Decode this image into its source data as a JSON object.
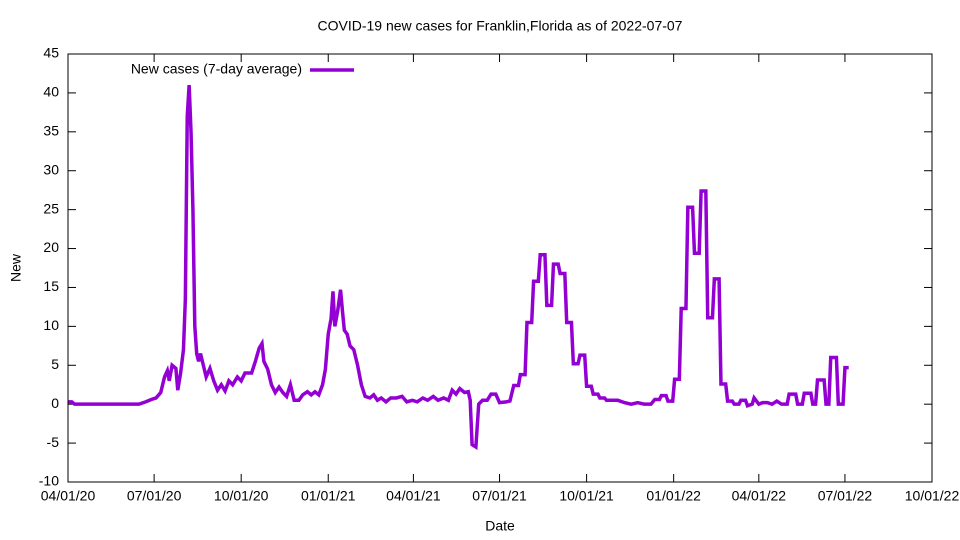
{
  "chart_data": {
    "type": "line",
    "title": "COVID-19 new cases for Franklin,Florida as of 2022-07-07",
    "x_label": "Date",
    "y_label": "New",
    "legend": "top-left",
    "grid": false,
    "xlim": [
      "2020-04-01",
      "2022-10-01"
    ],
    "xticks": [
      {
        "value": "2020-04-01",
        "label": "04/01/20"
      },
      {
        "value": "2020-07-01",
        "label": "07/01/20"
      },
      {
        "value": "2020-10-01",
        "label": "10/01/20"
      },
      {
        "value": "2021-01-01",
        "label": "01/01/21"
      },
      {
        "value": "2021-04-01",
        "label": "04/01/21"
      },
      {
        "value": "2021-07-01",
        "label": "07/01/21"
      },
      {
        "value": "2021-10-01",
        "label": "10/01/21"
      },
      {
        "value": "2022-01-01",
        "label": "01/01/22"
      },
      {
        "value": "2022-04-01",
        "label": "04/01/22"
      },
      {
        "value": "2022-07-01",
        "label": "07/01/22"
      },
      {
        "value": "2022-10-01",
        "label": "10/01/22"
      }
    ],
    "ylim": [
      -10,
      45
    ],
    "yticks": [
      -10,
      -5,
      0,
      5,
      10,
      15,
      20,
      25,
      30,
      35,
      40,
      45
    ],
    "x": [
      "2020-04-01",
      "2020-04-05",
      "2020-04-08",
      "2020-06-15",
      "2020-06-22",
      "2020-06-28",
      "2020-07-03",
      "2020-07-08",
      "2020-07-12",
      "2020-07-15",
      "2020-07-17",
      "2020-07-20",
      "2020-07-24",
      "2020-07-26",
      "2020-07-29",
      "2020-08-01",
      "2020-08-03",
      "2020-08-05",
      "2020-08-07",
      "2020-08-09",
      "2020-08-11",
      "2020-08-13",
      "2020-08-15",
      "2020-08-17",
      "2020-08-19",
      "2020-08-22",
      "2020-08-25",
      "2020-08-29",
      "2020-09-02",
      "2020-09-06",
      "2020-09-10",
      "2020-09-14",
      "2020-09-18",
      "2020-09-22",
      "2020-09-27",
      "2020-10-01",
      "2020-10-05",
      "2020-10-12",
      "2020-10-16",
      "2020-10-20",
      "2020-10-23",
      "2020-10-25",
      "2020-10-29",
      "2020-11-02",
      "2020-11-06",
      "2020-11-10",
      "2020-11-14",
      "2020-11-18",
      "2020-11-22",
      "2020-11-26",
      "2020-12-01",
      "2020-12-05",
      "2020-12-10",
      "2020-12-14",
      "2020-12-18",
      "2020-12-22",
      "2020-12-26",
      "2020-12-29",
      "2021-01-01",
      "2021-01-04",
      "2021-01-06",
      "2021-01-08",
      "2021-01-11",
      "2021-01-14",
      "2021-01-16",
      "2021-01-18",
      "2021-01-21",
      "2021-01-24",
      "2021-01-28",
      "2021-02-01",
      "2021-02-05",
      "2021-02-09",
      "2021-02-14",
      "2021-02-18",
      "2021-02-22",
      "2021-02-26",
      "2021-03-03",
      "2021-03-08",
      "2021-03-14",
      "2021-03-20",
      "2021-03-25",
      "2021-03-31",
      "2021-04-05",
      "2021-04-11",
      "2021-04-16",
      "2021-04-22",
      "2021-04-27",
      "2021-05-03",
      "2021-05-08",
      "2021-05-12",
      "2021-05-16",
      "2021-05-20",
      "2021-05-25",
      "2021-05-29",
      "2021-05-31",
      "2021-06-02",
      "2021-06-06",
      "2021-06-09",
      "2021-06-13",
      "2021-06-18",
      "2021-06-22",
      "2021-06-27",
      "2021-07-01",
      "2021-07-08",
      "2021-07-12",
      "2021-07-16",
      "2021-07-21",
      "2021-07-23",
      "2021-07-28",
      "2021-07-30",
      "2021-08-04",
      "2021-08-06",
      "2021-08-11",
      "2021-08-13",
      "2021-08-18",
      "2021-08-20",
      "2021-08-25",
      "2021-08-27",
      "2021-09-01",
      "2021-09-03",
      "2021-09-08",
      "2021-09-10",
      "2021-09-15",
      "2021-09-17",
      "2021-09-22",
      "2021-09-24",
      "2021-09-29",
      "2021-10-01",
      "2021-10-06",
      "2021-10-08",
      "2021-10-13",
      "2021-10-15",
      "2021-10-20",
      "2021-10-22",
      "2021-11-03",
      "2021-11-10",
      "2021-11-17",
      "2021-11-24",
      "2021-12-01",
      "2021-12-08",
      "2021-12-12",
      "2021-12-17",
      "2021-12-19",
      "2021-12-24",
      "2021-12-26",
      "2021-12-31",
      "2022-01-02",
      "2022-01-07",
      "2022-01-09",
      "2022-01-14",
      "2022-01-16",
      "2022-01-21",
      "2022-01-23",
      "2022-01-28",
      "2022-01-30",
      "2022-02-04",
      "2022-02-06",
      "2022-02-11",
      "2022-02-13",
      "2022-02-18",
      "2022-02-20",
      "2022-02-25",
      "2022-02-27",
      "2022-03-04",
      "2022-03-06",
      "2022-03-11",
      "2022-03-13",
      "2022-03-18",
      "2022-03-20",
      "2022-03-25",
      "2022-03-27",
      "2022-04-01",
      "2022-04-05",
      "2022-04-10",
      "2022-04-15",
      "2022-04-20",
      "2022-04-25",
      "2022-05-01",
      "2022-05-03",
      "2022-05-10",
      "2022-05-12",
      "2022-05-17",
      "2022-05-19",
      "2022-05-26",
      "2022-05-28",
      "2022-05-31",
      "2022-06-02",
      "2022-06-09",
      "2022-06-11",
      "2022-06-14",
      "2022-06-16",
      "2022-06-22",
      "2022-06-24",
      "2022-06-29",
      "2022-07-01",
      "2022-07-05"
    ],
    "series": [
      {
        "name": "New cases (7-day average)",
        "color": "#9400d3",
        "values": [
          0.3,
          0.3,
          0,
          0,
          0.3,
          0.6,
          0.8,
          1.5,
          3.5,
          4.3,
          3,
          5,
          4.6,
          1.8,
          4,
          7,
          13.5,
          37,
          41,
          35,
          25,
          10,
          6.5,
          5.5,
          6.5,
          5,
          3.5,
          4.6,
          3,
          1.8,
          2.5,
          1.7,
          3,
          2.5,
          3.5,
          3,
          4,
          4,
          5.5,
          7.2,
          7.8,
          5.5,
          4.5,
          2.5,
          1.5,
          2.2,
          1.5,
          1,
          2.5,
          0.5,
          0.5,
          1.2,
          1.6,
          1.2,
          1.6,
          1.2,
          2.5,
          4.5,
          9,
          11,
          14.5,
          10,
          12,
          14.7,
          12,
          9.5,
          9,
          7.5,
          7,
          5,
          2.5,
          1,
          0.8,
          1.2,
          0.5,
          0.8,
          0.3,
          0.8,
          0.8,
          1,
          0.3,
          0.5,
          0.3,
          0.8,
          0.5,
          1,
          0.5,
          0.8,
          0.5,
          1.8,
          1.3,
          2,
          1.5,
          1.6,
          0.5,
          -5.2,
          -5.5,
          0,
          0.5,
          0.5,
          1.3,
          1.3,
          0.2,
          0.3,
          0.4,
          2.4,
          2.4,
          3.8,
          3.8,
          10.5,
          10.5,
          15.8,
          15.8,
          19.2,
          19.2,
          12.7,
          12.7,
          18,
          18,
          16.8,
          16.8,
          10.5,
          10.5,
          5.2,
          5.2,
          6.3,
          6.3,
          2.3,
          2.3,
          1.3,
          1.3,
          0.8,
          0.8,
          0.5,
          0.5,
          0.2,
          0,
          0.2,
          0,
          0,
          0.6,
          0.6,
          1.1,
          1.1,
          0.4,
          0.4,
          3.2,
          3.2,
          12.3,
          12.3,
          25.3,
          25.3,
          19.4,
          19.4,
          27.4,
          27.4,
          11.1,
          11.1,
          16.1,
          16.1,
          2.6,
          2.6,
          0.4,
          0.4,
          0,
          0,
          0.5,
          0.5,
          -0.2,
          0,
          0.8,
          0,
          0.2,
          0.2,
          0,
          0.4,
          0,
          0,
          1.3,
          1.3,
          0,
          0,
          1.4,
          1.4,
          0,
          0,
          3.1,
          3.1,
          0,
          0,
          6,
          6,
          0,
          0,
          4.7,
          4.7
        ]
      }
    ]
  }
}
